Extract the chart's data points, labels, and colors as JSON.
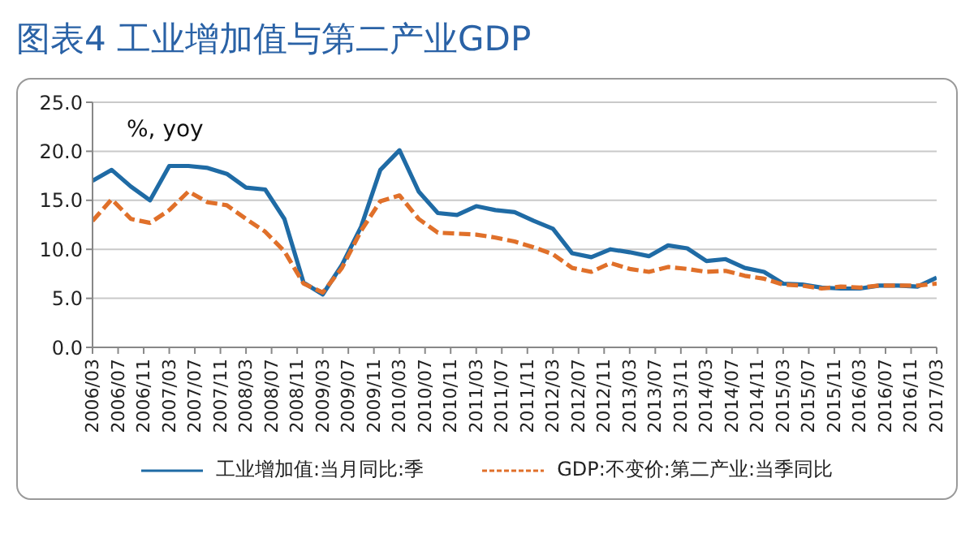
{
  "chart_data": {
    "type": "line",
    "title": "图表4 工业增加值与第二产业GDP",
    "annotations": [
      "%, yoy"
    ],
    "x": [
      "2006-03",
      "2006-06",
      "2006-09",
      "2006-12",
      "2007-03",
      "2007-06",
      "2007-09",
      "2007-12",
      "2008-03",
      "2008-06",
      "2008-09",
      "2008-12",
      "2009-03",
      "2009-06",
      "2009-09",
      "2009-12",
      "2010-03",
      "2010-06",
      "2010-09",
      "2010-12",
      "2011-03",
      "2011-06",
      "2011-09",
      "2011-12",
      "2012-03",
      "2012-06",
      "2012-09",
      "2012-12",
      "2013-03",
      "2013-06",
      "2013-09",
      "2013-12",
      "2014-03",
      "2014-06",
      "2014-09",
      "2014-12",
      "2015-03",
      "2015-06",
      "2015-09",
      "2015-12",
      "2016-03",
      "2016-06",
      "2016-09",
      "2016-12",
      "2017-03"
    ],
    "series": [
      {
        "name": "工业增加值:当月同比:季",
        "color": "#1f6ba5",
        "line_style": "solid",
        "values": [
          17.0,
          18.1,
          16.4,
          15.0,
          18.5,
          18.5,
          18.3,
          17.7,
          16.3,
          16.1,
          13.1,
          6.6,
          5.4,
          8.4,
          12.3,
          18.1,
          20.1,
          15.9,
          13.7,
          13.5,
          14.4,
          14.0,
          13.8,
          12.9,
          12.1,
          9.6,
          9.2,
          10.0,
          9.7,
          9.3,
          10.4,
          10.1,
          8.8,
          9.0,
          8.1,
          7.7,
          6.5,
          6.4,
          6.1,
          6.0,
          6.0,
          6.3,
          6.3,
          6.2,
          7.1
        ]
      },
      {
        "name": "GDP:不变价:第二产业:当季同比",
        "color": "#e0702a",
        "line_style": "dashed",
        "values": [
          12.9,
          15.1,
          13.1,
          12.7,
          14.0,
          15.9,
          14.8,
          14.5,
          13.1,
          11.8,
          9.8,
          6.5,
          5.6,
          8.1,
          11.9,
          14.9,
          15.5,
          13.1,
          11.7,
          11.6,
          11.5,
          11.2,
          10.8,
          10.2,
          9.5,
          8.1,
          7.7,
          8.6,
          8.0,
          7.7,
          8.2,
          8.0,
          7.7,
          7.8,
          7.3,
          7.0,
          6.4,
          6.3,
          6.0,
          6.2,
          6.1,
          6.3,
          6.3,
          6.3,
          6.5
        ]
      }
    ],
    "xlim": [
      "2006-03",
      "2017-03"
    ],
    "xticks": [
      {
        "value": "2006-03",
        "label": "2006/03"
      },
      {
        "value": "2006-07",
        "label": "2006/07"
      },
      {
        "value": "2006-11",
        "label": "2006/11"
      },
      {
        "value": "2007-03",
        "label": "2007/03"
      },
      {
        "value": "2007-07",
        "label": "2007/07"
      },
      {
        "value": "2007-11",
        "label": "2007/11"
      },
      {
        "value": "2008-03",
        "label": "2008/03"
      },
      {
        "value": "2008-07",
        "label": "2008/07"
      },
      {
        "value": "2008-11",
        "label": "2008/11"
      },
      {
        "value": "2009-03",
        "label": "2009/03"
      },
      {
        "value": "2009-07",
        "label": "2009/07"
      },
      {
        "value": "2009-11",
        "label": "2009/11"
      },
      {
        "value": "2010-03",
        "label": "2010/03"
      },
      {
        "value": "2010-07",
        "label": "2010/07"
      },
      {
        "value": "2010-11",
        "label": "2010/11"
      },
      {
        "value": "2011-03",
        "label": "2011/03"
      },
      {
        "value": "2011-07",
        "label": "2011/07"
      },
      {
        "value": "2011-11",
        "label": "2011/11"
      },
      {
        "value": "2012-03",
        "label": "2012/03"
      },
      {
        "value": "2012-07",
        "label": "2012/07"
      },
      {
        "value": "2012-11",
        "label": "2012/11"
      },
      {
        "value": "2013-03",
        "label": "2013/03"
      },
      {
        "value": "2013-07",
        "label": "2013/07"
      },
      {
        "value": "2013-11",
        "label": "2013/11"
      },
      {
        "value": "2014-03",
        "label": "2014/03"
      },
      {
        "value": "2014-07",
        "label": "2014/07"
      },
      {
        "value": "2014-11",
        "label": "2014/11"
      },
      {
        "value": "2015-03",
        "label": "2015/03"
      },
      {
        "value": "2015-07",
        "label": "2015/07"
      },
      {
        "value": "2015-11",
        "label": "2015/11"
      },
      {
        "value": "2016-03",
        "label": "2016/03"
      },
      {
        "value": "2016-07",
        "label": "2016/07"
      },
      {
        "value": "2016-11",
        "label": "2016/11"
      },
      {
        "value": "2017-03",
        "label": "2017/03"
      }
    ],
    "ylim": [
      0,
      25
    ],
    "yticks": [
      {
        "value": 0,
        "label": "0.0"
      },
      {
        "value": 5,
        "label": "5.0"
      },
      {
        "value": 10,
        "label": "10.0"
      },
      {
        "value": 15,
        "label": "15.0"
      },
      {
        "value": 20,
        "label": "20.0"
      },
      {
        "value": 25,
        "label": "25.0"
      }
    ],
    "grid": "y",
    "legend": "bottom",
    "marker": "none"
  }
}
